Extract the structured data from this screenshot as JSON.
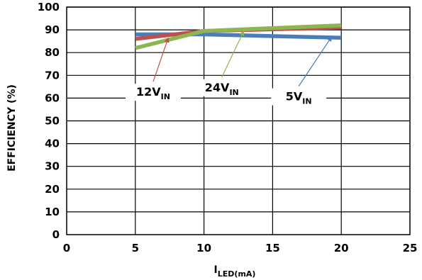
{
  "chart_data": {
    "type": "line",
    "xlabel": {
      "main": "I",
      "sub": "LED(mA)"
    },
    "ylabel": "EFFICIENCY (%)",
    "xlim": [
      0,
      25
    ],
    "ylim": [
      0,
      100
    ],
    "x_ticks": [
      "0",
      "5",
      "10",
      "15",
      "20",
      "25"
    ],
    "y_ticks": [
      "0",
      "10",
      "20",
      "30",
      "40",
      "50",
      "60",
      "70",
      "80",
      "90",
      "100"
    ],
    "grid": "horizontal",
    "series": [
      {
        "name": "5V",
        "subscript": "IN",
        "color": "#4a7ebb",
        "x": [
          5,
          10,
          20
        ],
        "y": [
          88,
          88,
          86.5
        ]
      },
      {
        "name": "12V",
        "subscript": "IN",
        "color": "#c0504d",
        "x": [
          5,
          10,
          20
        ],
        "y": [
          86,
          89.5,
          91
        ]
      },
      {
        "name": "24V",
        "subscript": "IN",
        "color": "#8db552",
        "x": [
          5,
          10,
          20
        ],
        "y": [
          82,
          89.5,
          92
        ]
      }
    ],
    "annotations": [
      {
        "main": "12V",
        "sub": "IN",
        "series": "12V",
        "arrow_to": [
          7.4,
          86.5
        ],
        "label_at": [
          6.3,
          61
        ]
      },
      {
        "main": "24V",
        "sub": "IN",
        "series": "24V",
        "arrow_to": [
          12.9,
          89.5
        ],
        "label_at": [
          11.3,
          63
        ]
      },
      {
        "main": "5V",
        "sub": "IN",
        "series": "5V",
        "arrow_to": [
          19.3,
          87
        ],
        "label_at": [
          16.9,
          59
        ]
      }
    ]
  }
}
